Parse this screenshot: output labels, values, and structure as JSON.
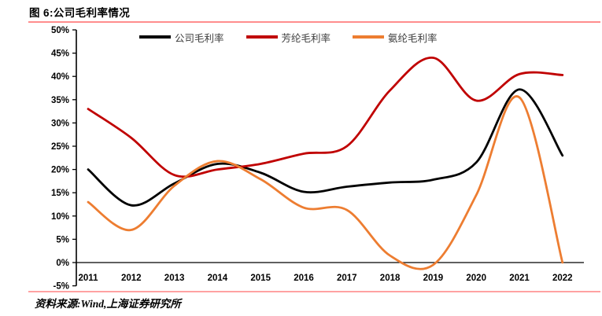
{
  "header": {
    "title": "图 6:公司毛利率情况"
  },
  "footer": {
    "source": "资料来源:Wind,上海证券研究所"
  },
  "colors": {
    "title_rule": "#ff8d8d",
    "footer_rule": "#ffa2a2",
    "axis": "#000000",
    "legend_text": "#404040"
  },
  "chart_data": {
    "type": "line",
    "title": "图 6:公司毛利率情况",
    "grid": false,
    "legend_position": "top",
    "x_categories": [
      "2011",
      "2012",
      "2013",
      "2014",
      "2015",
      "2016",
      "2017",
      "2018",
      "2019",
      "2020",
      "2021",
      "2022"
    ],
    "y_axis": {
      "min": -5,
      "max": 50,
      "step": 5,
      "format": "percent",
      "tick_labels": [
        "50%",
        "45%",
        "40%",
        "35%",
        "30%",
        "25%",
        "20%",
        "15%",
        "10%",
        "5%",
        "0%",
        "-5%"
      ]
    },
    "series": [
      {
        "name": "公司毛利率",
        "color": "#000000",
        "values": [
          20.0,
          12.3,
          17.0,
          21.2,
          19.3,
          15.2,
          16.3,
          17.2,
          17.8,
          21.5,
          37.2,
          23.0
        ]
      },
      {
        "name": "芳纶毛利率",
        "color": "#c00000",
        "values": [
          33.0,
          26.8,
          18.8,
          20.0,
          21.2,
          23.4,
          25.0,
          37.0,
          44.0,
          34.8,
          40.5,
          40.3
        ]
      },
      {
        "name": "氨纶毛利率",
        "color": "#ed7d31",
        "values": [
          13.0,
          7.0,
          16.5,
          21.8,
          17.9,
          11.8,
          11.3,
          1.5,
          -0.5,
          14.5,
          35.5,
          0.0
        ]
      }
    ]
  }
}
